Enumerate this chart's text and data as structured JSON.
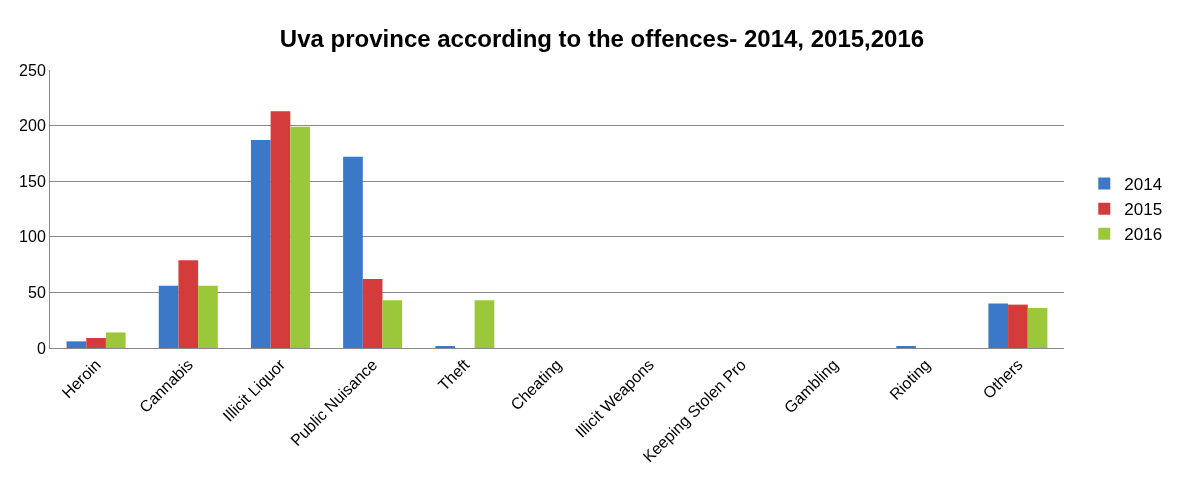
{
  "chart_data": {
    "type": "bar",
    "title": "Uva province according to the offences- 2014, 2015,2016",
    "categories": [
      "Heroin",
      "Cannabis",
      "Illicit Liquor",
      "Public Nuisance",
      "Theft",
      "Cheating",
      "Illicit Weapons",
      "Keeping Stolen Pro",
      "Gambling",
      "Rioting",
      "Others"
    ],
    "series": [
      {
        "name": "2014",
        "color": "#3b78c8",
        "values": [
          6,
          56,
          187,
          172,
          1,
          0,
          0,
          0,
          0,
          1,
          40
        ]
      },
      {
        "name": "2015",
        "color": "#d43b3b",
        "values": [
          9,
          79,
          213,
          62,
          0,
          0,
          0,
          0,
          0,
          0,
          39
        ]
      },
      {
        "name": "2016",
        "color": "#9bc83a",
        "values": [
          14,
          56,
          199,
          43,
          43,
          0,
          0,
          0,
          0,
          0,
          36
        ]
      }
    ],
    "ylim": [
      0,
      250
    ],
    "yticks": [
      0,
      50,
      100,
      150,
      200,
      250
    ],
    "grid": "y",
    "legend": "right"
  }
}
